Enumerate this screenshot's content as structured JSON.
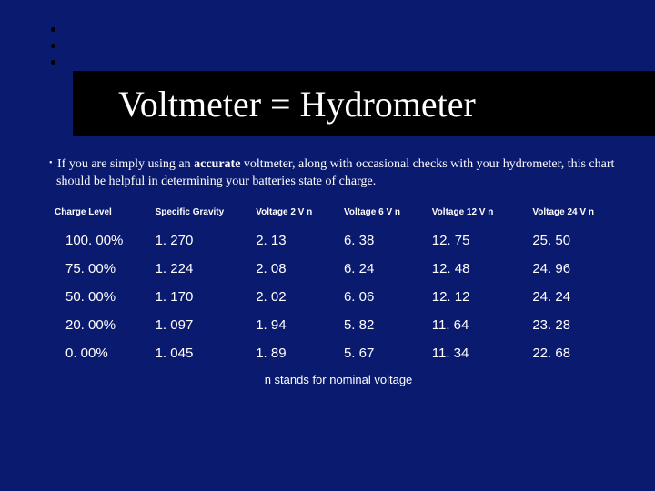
{
  "colors": {
    "background": "#0a1a6e",
    "title_band": "#000000",
    "text": "#ffffff",
    "bullet_dot": "#000000"
  },
  "title": "Voltmeter = Hydrometer",
  "intro": {
    "prefix": "If you are simply using an ",
    "bold": "accurate",
    "suffix": " voltmeter, along with occasional checks with your hydrometer, this chart should be helpful in determining your batteries state of charge."
  },
  "table": {
    "columns": [
      "Charge Level",
      "Specific Gravity",
      "Voltage 2 V n",
      "Voltage 6 V n",
      "Voltage 12 V n",
      "Voltage 24 V n"
    ],
    "rows": [
      [
        "100. 00%",
        "1. 270",
        "2. 13",
        "6. 38",
        "12. 75",
        "25. 50"
      ],
      [
        "75. 00%",
        "1. 224",
        "2. 08",
        "6. 24",
        "12. 48",
        "24. 96"
      ],
      [
        "50. 00%",
        "1. 170",
        "2. 02",
        "6. 06",
        "12. 12",
        "24. 24"
      ],
      [
        "20. 00%",
        "1. 097",
        "1. 94",
        "5. 82",
        "11. 64",
        "23. 28"
      ],
      [
        "0. 00%",
        "1. 045",
        "1. 89",
        "5. 67",
        "11. 34",
        "22. 68"
      ]
    ],
    "header_fontsize": 10,
    "cell_fontsize": 15,
    "font_family": "Arial"
  },
  "footnote": "n stands for nominal voltage"
}
